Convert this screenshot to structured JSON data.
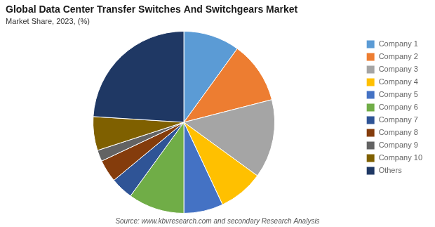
{
  "chart_data": {
    "type": "pie",
    "title": "Global Data Center Transfer Switches And Switchgears Market",
    "subtitle": "Market Share, 2023, (%)",
    "annotations": [
      "Source: www.kbvresearch.com and secondary Research Analysis"
    ],
    "categories": [
      "Company 1",
      "Company 2",
      "Company 3",
      "Company 4",
      "Company 5",
      "Company 6",
      "Company 7",
      "Company 8",
      "Company 9",
      "Company 10",
      "Others"
    ],
    "values": [
      10,
      11,
      14,
      8,
      7,
      10,
      4,
      4,
      2,
      6,
      24
    ],
    "colors": [
      "#5B9BD5",
      "#ED7D31",
      "#A5A5A5",
      "#FFC000",
      "#4472C4",
      "#70AD47",
      "#2F5496",
      "#843C0C",
      "#636363",
      "#7F6000",
      "#1F3864"
    ],
    "legend": "right"
  }
}
